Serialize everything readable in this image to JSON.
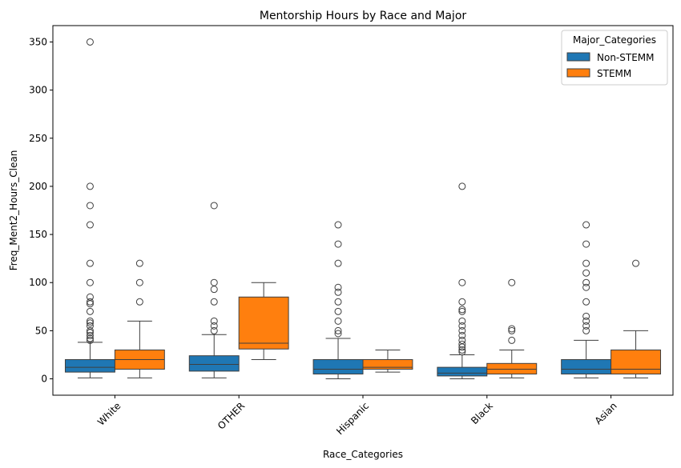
{
  "chart_data": {
    "type": "box",
    "title": "Mentorship Hours by Race and Major",
    "xlabel": "Race_Categories",
    "ylabel": "Freq_Ment2_Hours_Clean",
    "ylim": [
      -17,
      367
    ],
    "yticks": [
      0,
      50,
      100,
      150,
      200,
      250,
      300,
      350
    ],
    "categories": [
      "White",
      "OTHER",
      "Hispanic",
      "Black",
      "Asian"
    ],
    "grid": false,
    "legend": {
      "title": "Major_Categories",
      "placement": "top-right"
    },
    "series": [
      {
        "name": "Non-STEMM",
        "color": "#1f77b4",
        "boxes": [
          {
            "whisker_low": 1,
            "q1": 7,
            "median": 12,
            "q3": 20,
            "whisker_high": 38,
            "outliers": [
              40,
              42,
              45,
              48,
              50,
              55,
              58,
              60,
              70,
              78,
              80,
              85,
              100,
              120,
              160,
              180,
              200,
              350
            ]
          },
          {
            "whisker_low": 1,
            "q1": 8,
            "median": 15,
            "q3": 24,
            "whisker_high": 46,
            "outliers": [
              50,
              55,
              60,
              80,
              93,
              100,
              180
            ]
          },
          {
            "whisker_low": 0,
            "q1": 5,
            "median": 10,
            "q3": 20,
            "whisker_high": 42,
            "outliers": [
              47,
              50,
              60,
              70,
              80,
              90,
              95,
              120,
              140,
              160
            ]
          },
          {
            "whisker_low": 0,
            "q1": 3,
            "median": 6,
            "q3": 12,
            "whisker_high": 25,
            "outliers": [
              28,
              30,
              33,
              36,
              40,
              45,
              50,
              55,
              60,
              70,
              72,
              80,
              100,
              200
            ]
          },
          {
            "whisker_low": 1,
            "q1": 5,
            "median": 10,
            "q3": 20,
            "whisker_high": 40,
            "outliers": [
              50,
              55,
              60,
              65,
              80,
              95,
              100,
              110,
              120,
              140,
              160
            ]
          }
        ]
      },
      {
        "name": "STEMM",
        "color": "#ff7f0e",
        "boxes": [
          {
            "whisker_low": 1,
            "q1": 10,
            "median": 20,
            "q3": 30,
            "whisker_high": 60,
            "outliers": [
              80,
              100,
              120
            ]
          },
          {
            "whisker_low": 20,
            "q1": 31,
            "median": 37,
            "q3": 85,
            "whisker_high": 100,
            "outliers": []
          },
          {
            "whisker_low": 7,
            "q1": 10,
            "median": 12,
            "q3": 20,
            "whisker_high": 30,
            "outliers": []
          },
          {
            "whisker_low": 1,
            "q1": 5,
            "median": 10,
            "q3": 16,
            "whisker_high": 30,
            "outliers": [
              40,
              50,
              52,
              100
            ]
          },
          {
            "whisker_low": 1,
            "q1": 5,
            "median": 10,
            "q3": 30,
            "whisker_high": 50,
            "outliers": [
              120
            ]
          }
        ]
      }
    ]
  }
}
